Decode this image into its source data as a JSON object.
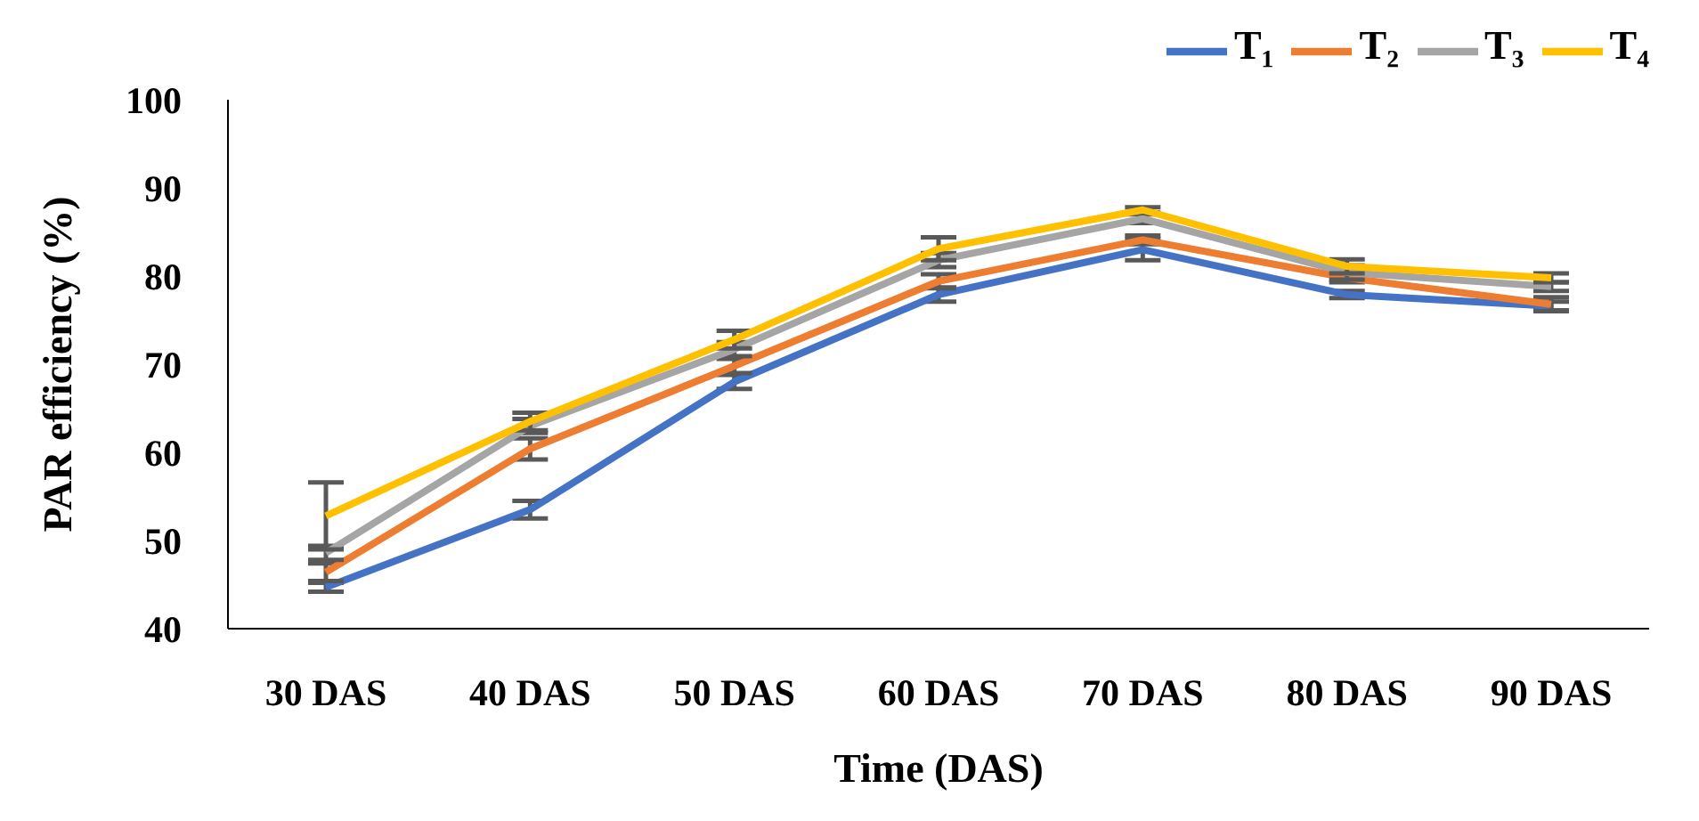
{
  "chart_data": {
    "type": "line",
    "xlabel": "Time (DAS)",
    "ylabel": "PAR efficiency (%)",
    "categories": [
      "30 DAS",
      "40 DAS",
      "50 DAS",
      "60 DAS",
      "70 DAS",
      "80 DAS",
      "90 DAS"
    ],
    "ylim": [
      40,
      100
    ],
    "yticks": [
      40,
      50,
      60,
      70,
      80,
      90,
      100
    ],
    "legend": "top right",
    "marker": "none",
    "line_style": "solid",
    "series": [
      {
        "name": "T₁",
        "color": "#4472c4",
        "values": [
          44.7,
          53.5,
          68,
          77.9,
          83,
          77.9,
          76.6
        ],
        "errors": [
          0.5,
          1,
          0.8,
          0.8,
          1.2,
          0.4,
          0.5
        ]
      },
      {
        "name": "T₂",
        "color": "#ed7d31",
        "values": [
          46.4,
          60.4,
          69.8,
          79.4,
          84.1,
          79.8,
          76.8
        ],
        "errors": [
          1,
          1.2,
          0.8,
          0.8,
          0.5,
          0.5,
          0.8
        ]
      },
      {
        "name": "T₃",
        "color": "#a5a5a5",
        "values": [
          48.6,
          63,
          71.7,
          81.8,
          86.5,
          80.4,
          78.8
        ],
        "errors": [
          0.8,
          0.8,
          0.8,
          0.8,
          0.5,
          0.8,
          0.5
        ]
      },
      {
        "name": "T₄",
        "color": "#ffc000",
        "values": [
          52.8,
          63.5,
          72.8,
          83.1,
          87.5,
          81.1,
          79.8
        ],
        "errors": [
          3.8,
          1,
          1,
          1.3,
          0.3,
          0.8,
          0.5
        ]
      }
    ]
  }
}
